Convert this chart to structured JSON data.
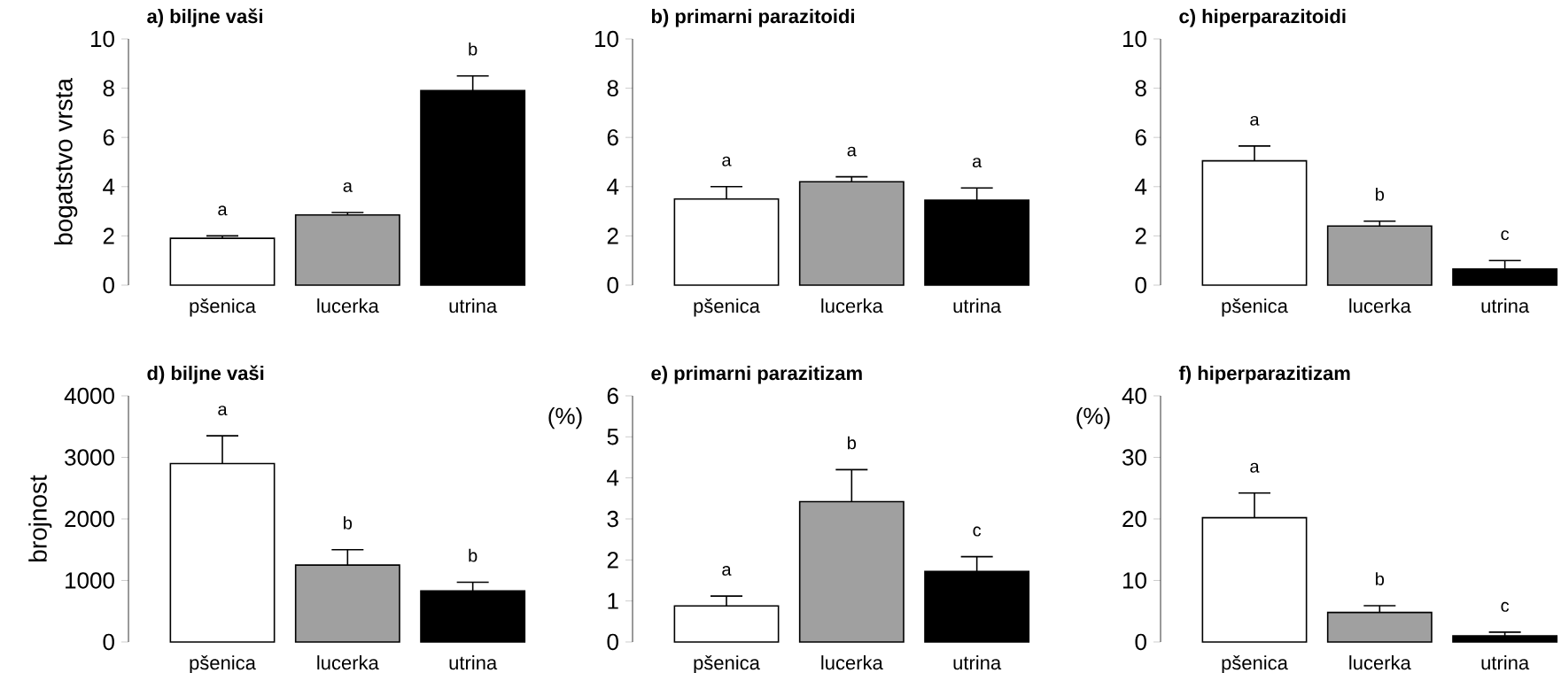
{
  "chart_data": [
    {
      "type": "bar",
      "title": "a) biljne vaši",
      "ylabel": "bogatstvo vrsta",
      "categories": [
        "pšenica",
        "lucerka",
        "utrina"
      ],
      "values": [
        1.9,
        2.85,
        7.9
      ],
      "errors": [
        0.1,
        0.1,
        0.6
      ],
      "colors": [
        "#ffffff",
        "#a0a0a0",
        "#000000"
      ],
      "ylim": [
        0,
        10
      ],
      "yticks": [
        0,
        2,
        4,
        6,
        8,
        10
      ],
      "annotations": [
        "a",
        "a",
        "b"
      ]
    },
    {
      "type": "bar",
      "title": "b) primarni parazitoidi",
      "categories": [
        "pšenica",
        "lucerka",
        "utrina"
      ],
      "values": [
        3.5,
        4.2,
        3.45
      ],
      "errors": [
        0.5,
        0.2,
        0.5
      ],
      "colors": [
        "#ffffff",
        "#a0a0a0",
        "#000000"
      ],
      "ylim": [
        0,
        10
      ],
      "yticks": [
        0,
        2,
        4,
        6,
        8,
        10
      ],
      "annotations": [
        "a",
        "a",
        "a"
      ]
    },
    {
      "type": "bar",
      "title": "c) hiperparazitoidi",
      "categories": [
        "pšenica",
        "lucerka",
        "utrina"
      ],
      "values": [
        5.05,
        2.4,
        0.65
      ],
      "errors": [
        0.6,
        0.2,
        0.35
      ],
      "colors": [
        "#ffffff",
        "#a0a0a0",
        "#000000"
      ],
      "ylim": [
        0,
        10
      ],
      "yticks": [
        0,
        2,
        4,
        6,
        8,
        10
      ],
      "annotations": [
        "a",
        "b",
        "c"
      ]
    },
    {
      "type": "bar",
      "title": "d) biljne vaši",
      "ylabel": "brojnost",
      "categories": [
        "pšenica",
        "lucerka",
        "utrina"
      ],
      "values": [
        2900,
        1250,
        830
      ],
      "errors": [
        450,
        250,
        140
      ],
      "colors": [
        "#ffffff",
        "#a0a0a0",
        "#000000"
      ],
      "ylim": [
        0,
        4000
      ],
      "yticks": [
        0,
        1000,
        2000,
        3000,
        4000
      ],
      "annotations": [
        "a",
        "b",
        "b"
      ]
    },
    {
      "type": "bar",
      "title": "e) primarni parazitizam",
      "ylabel": "(%)",
      "categories": [
        "pšenica",
        "lucerka",
        "utrina"
      ],
      "values": [
        0.88,
        3.42,
        1.72
      ],
      "errors": [
        0.24,
        0.78,
        0.36
      ],
      "colors": [
        "#ffffff",
        "#a0a0a0",
        "#000000"
      ],
      "ylim": [
        0,
        6
      ],
      "yticks": [
        0,
        1,
        2,
        3,
        4,
        5,
        6
      ],
      "annotations": [
        "a",
        "b",
        "c"
      ]
    },
    {
      "type": "bar",
      "title": "f) hiperparazitizam",
      "ylabel": "(%)",
      "categories": [
        "pšenica",
        "lucerka",
        "utrina"
      ],
      "values": [
        20.2,
        4.8,
        1.0
      ],
      "errors": [
        4.0,
        1.1,
        0.6
      ],
      "colors": [
        "#ffffff",
        "#a0a0a0",
        "#000000"
      ],
      "ylim": [
        0,
        40
      ],
      "yticks": [
        0,
        10,
        20,
        30,
        40
      ],
      "annotations": [
        "a",
        "b",
        "c"
      ]
    }
  ]
}
